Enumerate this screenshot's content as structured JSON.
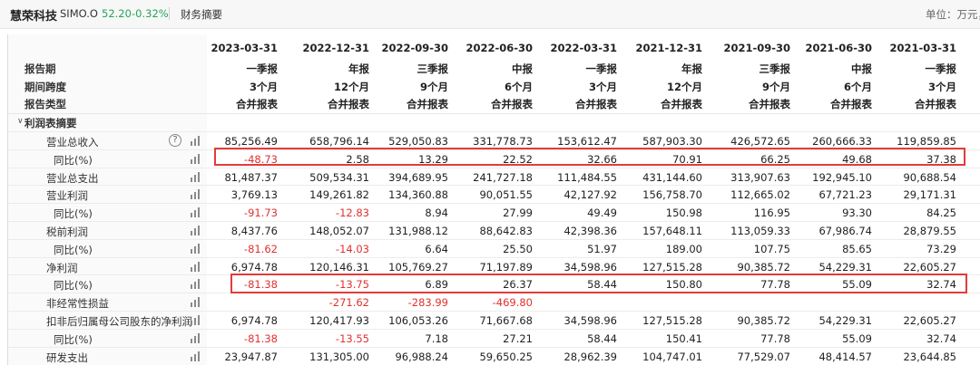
{
  "header": {
    "company": "慧荣科技",
    "code": "SIMO.O",
    "price": "52.20",
    "change": "-0.32%",
    "tab": "财务摘要",
    "unit": "单位：万元，C"
  },
  "icons": {
    "help": "question-circle-icon",
    "chart": "bar-chart-icon"
  },
  "colors": {
    "negative": "#e0312f",
    "positive_quote": "#22a65a",
    "highlight_box": "#e23b3b"
  },
  "table": {
    "period_labels": [
      "2023-03-31",
      "2022-12-31",
      "2022-09-30",
      "2022-06-30",
      "2022-03-31",
      "2021-12-31",
      "2021-09-30",
      "2021-06-30",
      "2021-03-31"
    ],
    "header_rows": [
      {
        "label": "报告期",
        "values": [
          "一季报",
          "年报",
          "三季报",
          "中报",
          "一季报",
          "年报",
          "三季报",
          "中报",
          "一季报"
        ]
      },
      {
        "label": "期间跨度",
        "values": [
          "3个月",
          "12个月",
          "9个月",
          "6个月",
          "3个月",
          "12个月",
          "9个月",
          "6个月",
          "3个月"
        ]
      },
      {
        "label": "报告类型",
        "values": [
          "合并报表",
          "合并报表",
          "合并报表",
          "合并报表",
          "合并报表",
          "合并报表",
          "合并报表",
          "合并报表",
          "合并报表"
        ]
      }
    ],
    "section_title": "利润表摘要",
    "help_symbol": "?",
    "rows": [
      {
        "label": "营业总收入",
        "values": [
          "85,256.49",
          "658,796.14",
          "529,050.83",
          "331,778.73",
          "153,612.47",
          "587,903.30",
          "426,572.65",
          "260,666.33",
          "119,859.85"
        ]
      },
      {
        "label": "同比(%)",
        "values": [
          "-48.73",
          "2.58",
          "13.29",
          "22.52",
          "32.66",
          "70.91",
          "66.25",
          "49.68",
          "37.38"
        ]
      },
      {
        "label": "营业总支出",
        "values": [
          "81,487.37",
          "509,534.31",
          "394,689.95",
          "241,727.18",
          "111,484.55",
          "431,144.60",
          "313,907.63",
          "192,945.10",
          "90,688.54"
        ]
      },
      {
        "label": "营业利润",
        "values": [
          "3,769.13",
          "149,261.82",
          "134,360.88",
          "90,051.55",
          "42,127.92",
          "156,758.70",
          "112,665.02",
          "67,721.23",
          "29,171.31"
        ]
      },
      {
        "label": "同比(%)",
        "values": [
          "-91.73",
          "-12.83",
          "8.94",
          "27.99",
          "49.49",
          "150.98",
          "116.95",
          "93.30",
          "84.25"
        ]
      },
      {
        "label": "税前利润",
        "values": [
          "8,437.76",
          "148,052.07",
          "131,988.12",
          "88,642.83",
          "42,398.36",
          "157,648.11",
          "113,059.33",
          "67,986.74",
          "28,879.55"
        ]
      },
      {
        "label": "同比(%)",
        "values": [
          "-81.62",
          "-14.03",
          "6.64",
          "25.50",
          "51.97",
          "189.00",
          "107.75",
          "85.65",
          "73.29"
        ]
      },
      {
        "label": "净利润",
        "values": [
          "6,974.78",
          "120,146.31",
          "105,769.27",
          "71,197.89",
          "34,598.96",
          "127,515.28",
          "90,385.72",
          "54,229.31",
          "22,605.27"
        ]
      },
      {
        "label": "同比(%)",
        "values": [
          "-81.38",
          "-13.75",
          "6.89",
          "26.37",
          "58.44",
          "150.80",
          "77.78",
          "55.09",
          "32.74"
        ]
      },
      {
        "label": "非经常性损益",
        "values": [
          "",
          "-271.62",
          "-283.99",
          "-469.80",
          "",
          "",
          "",
          "",
          ""
        ]
      },
      {
        "label": "扣非后归属母公司股东的净利润",
        "values": [
          "6,974.78",
          "120,417.93",
          "106,053.26",
          "71,667.68",
          "34,598.96",
          "127,515.28",
          "90,385.72",
          "54,229.31",
          "22,605.27"
        ]
      },
      {
        "label": "同比(%)",
        "values": [
          "-81.38",
          "-13.55",
          "7.18",
          "27.21",
          "58.44",
          "150.41",
          "77.78",
          "55.09",
          "32.74"
        ]
      },
      {
        "label": "研发支出",
        "values": [
          "23,947.87",
          "131,305.00",
          "96,988.24",
          "59,650.25",
          "28,962.39",
          "104,747.01",
          "77,529.07",
          "48,414.57",
          "23,644.85"
        ]
      }
    ]
  }
}
